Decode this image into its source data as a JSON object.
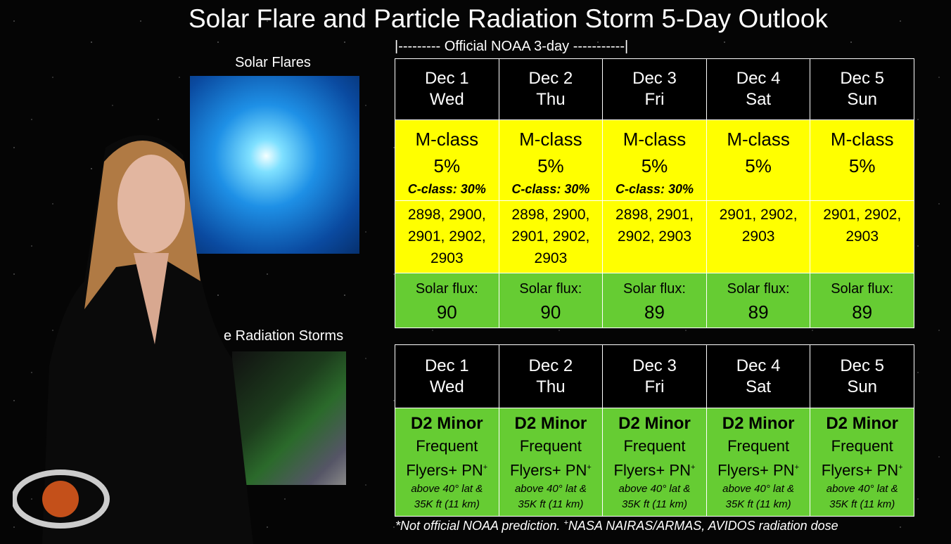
{
  "header": {
    "title": "Solar Flare and Particle Radiation Storm 5-Day Outlook",
    "subtitle": "|--------- Official NOAA 3-day -----------|"
  },
  "panels": {
    "flares_label": "Solar Flares",
    "storms_label": "e Radiation Storms"
  },
  "flare_table": {
    "columns": [
      {
        "date": "Dec 1",
        "weekday": "Wed",
        "flare": "M-class",
        "chance": "5%",
        "c_class": "C-class: 30%",
        "regions": [
          "2898, 2900,",
          "2901, 2902,",
          "2903"
        ],
        "flux_label": "Solar flux:",
        "flux": 90
      },
      {
        "date": "Dec 2",
        "weekday": "Thu",
        "flare": "M-class",
        "chance": "5%",
        "c_class": "C-class: 30%",
        "regions": [
          "2898, 2900,",
          "2901, 2902,",
          "2903"
        ],
        "flux_label": "Solar flux:",
        "flux": 90
      },
      {
        "date": "Dec 3",
        "weekday": "Fri",
        "flare": "M-class",
        "chance": "5%",
        "c_class": "C-class: 30%",
        "regions": [
          "2898, 2901,",
          "2902, 2903"
        ],
        "flux_label": "Solar flux:",
        "flux": 89
      },
      {
        "date": "Dec 4",
        "weekday": "Sat",
        "flare": "M-class",
        "chance": "5%",
        "regions": [
          "2901, 2902,",
          "2903"
        ],
        "flux_label": "Solar flux:",
        "flux": 89
      },
      {
        "date": "Dec 5",
        "weekday": "Sun",
        "flare": "M-class",
        "chance": "5%",
        "regions": [
          "2901, 2902,",
          "2903"
        ],
        "flux_label": "Solar flux:",
        "flux": 89
      }
    ]
  },
  "radiation_table": {
    "columns": [
      {
        "date": "Dec 1",
        "weekday": "Wed",
        "level": "D2 Minor",
        "line1": "Frequent",
        "line2": "Flyers+ PN",
        "mark": "+",
        "note1": "above 40° lat &",
        "note2": "35K ft (11 km)"
      },
      {
        "date": "Dec 2",
        "weekday": "Thu",
        "level": "D2 Minor",
        "line1": "Frequent",
        "line2": "Flyers+ PN",
        "mark": "+",
        "note1": "above 40° lat &",
        "note2": "35K ft (11 km)"
      },
      {
        "date": "Dec 3",
        "weekday": "Fri",
        "level": "D2 Minor",
        "line1": "Frequent",
        "line2": "Flyers+ PN",
        "mark": "+",
        "note1": "above 40° lat &",
        "note2": "35K ft (11 km)"
      },
      {
        "date": "Dec 4",
        "weekday": "Sat",
        "level": "D2 Minor",
        "line1": "Frequent",
        "line2": "Flyers+ PN",
        "mark": "+",
        "note1": "above 40° lat &",
        "note2": "35K ft (11 km)"
      },
      {
        "date": "Dec 5",
        "weekday": "Sun",
        "level": "D2 Minor",
        "line1": "Frequent",
        "line2": "Flyers+ PN",
        "mark": "+",
        "note1": "above 40° lat &",
        "note2": "35K ft (11 km)"
      }
    ]
  },
  "footer": {
    "part1": "*Not official NOAA prediction.  ",
    "mark": "+",
    "part2": "NASA NAIRAS/ARMAS, AVIDOS radiation dose"
  }
}
